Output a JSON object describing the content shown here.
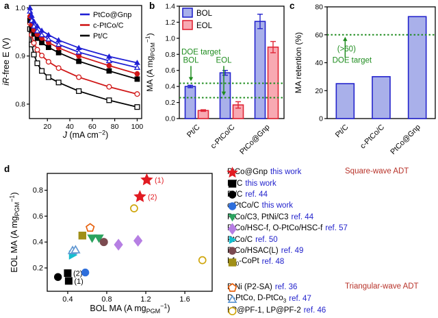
{
  "panels": {
    "a": {
      "label": "a"
    },
    "b": {
      "label": "b"
    },
    "c": {
      "label": "c"
    },
    "d": {
      "label": "d"
    }
  },
  "colors": {
    "line_blue": "#1f1fd4",
    "line_red": "#d01818",
    "line_black": "#000000",
    "bar_blue_fill": "#a9b0ea",
    "bar_blue_edge": "#2323cc",
    "bar_red_fill": "#f8a9b2",
    "bar_red_edge": "#e02636",
    "doe_green": "#1e8c1e",
    "adt_dark_red": "#b73229",
    "ref_blue": "#2222cc"
  },
  "chart_data": [
    {
      "id": "a",
      "type": "line",
      "xlabel": "*J* (mA cm^−2^)",
      "ylabel": "*iR*-free E (V)",
      "xlim": [
        4,
        104
      ],
      "ylim": [
        0.77,
        1.005
      ],
      "xticks": [
        20,
        40,
        60,
        80,
        100
      ],
      "yticks": [
        0.8,
        0.9,
        1.0
      ],
      "x": [
        4.5,
        6,
        8,
        11,
        15,
        21,
        30,
        48,
        75,
        100
      ],
      "series": [
        {
          "name": "Pt/C EOL",
          "color": "#000000",
          "marker": "square",
          "open": true,
          "values": [
            0.956,
            0.924,
            0.903,
            0.885,
            0.869,
            0.856,
            0.845,
            0.827,
            0.808,
            0.794
          ]
        },
        {
          "name": "c-PtCo/C EOL",
          "color": "#d01818",
          "marker": "circle",
          "open": true,
          "values": [
            0.968,
            0.944,
            0.927,
            0.913,
            0.901,
            0.888,
            0.875,
            0.856,
            0.836,
            0.821
          ]
        },
        {
          "name": "Pt/C BOL",
          "color": "#000000",
          "marker": "square",
          "open": false,
          "values": [
            0.974,
            0.957,
            0.946,
            0.937,
            0.928,
            0.918,
            0.907,
            0.889,
            0.869,
            0.852
          ]
        },
        {
          "name": "c-PtCo/C BOL",
          "color": "#d01818",
          "marker": "circle",
          "open": false,
          "values": [
            0.982,
            0.965,
            0.954,
            0.945,
            0.937,
            0.928,
            0.917,
            0.9,
            0.88,
            0.863
          ]
        },
        {
          "name": "PtCo@Gnp EOL",
          "color": "#1f1fd4",
          "marker": "triangle-up",
          "open": true,
          "values": [
            0.993,
            0.974,
            0.962,
            0.952,
            0.944,
            0.935,
            0.924,
            0.908,
            0.89,
            0.876
          ]
        },
        {
          "name": "PtCo@Gnp BOL",
          "color": "#1f1fd4",
          "marker": "triangle-up",
          "open": false,
          "values": [
            1.0,
            0.984,
            0.972,
            0.962,
            0.953,
            0.944,
            0.933,
            0.917,
            0.899,
            0.886
          ]
        }
      ],
      "legend": [
        {
          "label": "PtCo@Gnp",
          "color": "#1f1fd4"
        },
        {
          "label": "c-PtCo/C",
          "color": "#d01818"
        },
        {
          "label": "Pt/C",
          "color": "#000000"
        }
      ]
    },
    {
      "id": "b",
      "type": "bar",
      "ylabel": "MA (A mg~PGM~^−1^)",
      "categories": [
        "Pt/C",
        "c-PtCo/C",
        "PtCo@Gnp"
      ],
      "ylim": [
        0,
        1.4
      ],
      "yticks": [
        0,
        0.2,
        0.4,
        0.6,
        0.8,
        1.0,
        1.2,
        1.4
      ],
      "ytick_decimals": 1,
      "series": [
        {
          "name": "BOL",
          "fill": "#a9b0ea",
          "edge": "#2323cc",
          "values": [
            0.4,
            0.57,
            1.21
          ],
          "errors": [
            0.015,
            0.03,
            0.09
          ]
        },
        {
          "name": "EOL",
          "fill": "#f8a9b2",
          "edge": "#e02636",
          "values": [
            0.1,
            0.17,
            0.89
          ],
          "errors": [
            0.01,
            0.04,
            0.07
          ]
        }
      ],
      "targets": {
        "color": "#1e8c1e",
        "title": "DOE target",
        "lines": [
          {
            "label": "BOL",
            "value": 0.44
          },
          {
            "label": "EOL",
            "value": 0.26
          }
        ]
      }
    },
    {
      "id": "c",
      "type": "bar",
      "ylabel": "MA retention (%)",
      "categories": [
        "Pt/C",
        "c-PtCo/C",
        "PtCo@Gnp"
      ],
      "ylim": [
        0,
        80
      ],
      "yticks": [
        0,
        20,
        40,
        60,
        80
      ],
      "ytick_decimals": 0,
      "series": [
        {
          "name": "MA retention",
          "fill": "#a9b0ea",
          "edge": "#2323cc",
          "values": [
            25,
            30,
            73
          ]
        }
      ],
      "targets": {
        "color": "#1e8c1e",
        "note_line1": "(>60)",
        "note_line2": "DOE target",
        "lines": [
          {
            "value": 60
          }
        ]
      }
    },
    {
      "id": "d",
      "type": "scatter",
      "xlabel": "BOL MA (A mg~PGM~^−1^)",
      "ylabel": "EOL MA (A mg~PGM~^−1^)",
      "xlim": [
        0.19,
        1.88
      ],
      "ylim": [
        0.02,
        0.93
      ],
      "xticks": [
        0.4,
        0.8,
        1.2,
        1.6
      ],
      "yticks": [
        0.2,
        0.4,
        0.6,
        0.8
      ],
      "series": [
        {
          "name": "PtCo@Gnp this work",
          "marker": "star",
          "color": "#e11b22",
          "open": false,
          "size": 8.5,
          "points": [
            {
              "x": 1.21,
              "y": 0.88,
              "label": "(1)"
            },
            {
              "x": 1.14,
              "y": 0.75,
              "label": "(2)"
            }
          ]
        },
        {
          "name": "Pt/C this work",
          "marker": "square",
          "color": "#000000",
          "open": false,
          "size": 5,
          "points": [
            {
              "x": 0.4,
              "y": 0.16,
              "label": "(2)"
            },
            {
              "x": 0.41,
              "y": 0.1,
              "label": "(1)"
            }
          ]
        },
        {
          "name": "Pt/C ref. 44",
          "marker": "circle",
          "color": "#000000",
          "open": false,
          "size": 5.2,
          "points": [
            {
              "x": 0.3,
              "y": 0.13
            }
          ]
        },
        {
          "name": "c-PtCo/C this work",
          "marker": "circle",
          "color": "#2e6edb",
          "open": false,
          "size": 5.2,
          "points": [
            {
              "x": 0.58,
              "y": 0.165
            }
          ]
        },
        {
          "name": "PtCo/C3, PtNi/C3 ref. 44",
          "marker": "triangle-down",
          "color": "#2ba35f",
          "open": false,
          "size": 6,
          "points": [
            {
              "x": 0.65,
              "y": 0.43
            },
            {
              "x": 0.72,
              "y": 0.43
            }
          ]
        },
        {
          "name": "PtCo/HSC-f, O-PtCo/HSC-f ref. 57",
          "marker": "diamond",
          "color": "#b67fe3",
          "open": false,
          "size": 6,
          "points": [
            {
              "x": 0.92,
              "y": 0.38
            },
            {
              "x": 1.12,
              "y": 0.41
            }
          ]
        },
        {
          "name": "PtCo/C ref. 50",
          "marker": "triangle-right",
          "color": "#16becf",
          "open": false,
          "size": 6,
          "points": [
            {
              "x": 0.45,
              "y": 0.3
            }
          ]
        },
        {
          "name": "PtCo/HSAC(L) ref. 49",
          "marker": "circle",
          "color": "#7b4a50",
          "open": false,
          "size": 5.5,
          "points": [
            {
              "x": 0.77,
              "y": 0.4
            }
          ]
        },
        {
          "name": "L10-CoPt ref. 48",
          "marker": "square",
          "color": "#a08f17",
          "open": false,
          "size": 5.2,
          "points": [
            {
              "x": 0.55,
              "y": 0.45
            }
          ]
        },
        {
          "name": "PtNi (P2-SA) ref. 36",
          "marker": "pentagon",
          "color": "#e7600d",
          "open": true,
          "size": 6,
          "points": [
            {
              "x": 0.63,
              "y": 0.51
            }
          ]
        },
        {
          "name": "D-PtCo, D-PtCo3 ref. 47",
          "marker": "triangle-up",
          "color": "#6197d2",
          "open": true,
          "size": 5.5,
          "points": [
            {
              "x": 0.45,
              "y": 0.335
            },
            {
              "x": 0.48,
              "y": 0.34
            }
          ]
        },
        {
          "name": "LP@PF-1, LP@PF-2 ref. 46",
          "marker": "circle",
          "color": "#cfa50a",
          "open": true,
          "size": 5,
          "points": [
            {
              "x": 1.08,
              "y": 0.66
            },
            {
              "x": 1.78,
              "y": 0.26
            }
          ]
        }
      ]
    }
  ],
  "legend_d": {
    "groups": [
      {
        "label": "Square-wave ADT",
        "items": [
          {
            "marker": "star",
            "color": "#e11b22",
            "open": false,
            "name": "PtCo@Gnp",
            "ref": "this work"
          },
          {
            "marker": "square",
            "color": "#000000",
            "open": false,
            "name": "Pt/C",
            "ref": "this work"
          },
          {
            "marker": "circle",
            "color": "#000000",
            "open": false,
            "name": "Pt/C",
            "ref": "ref. 44"
          },
          {
            "marker": "circle",
            "color": "#2e6edb",
            "open": false,
            "name": "c-PtCo/C",
            "ref": "this work"
          },
          {
            "marker": "triangle-down",
            "color": "#2ba35f",
            "open": false,
            "name": "PtCo/C3, PtNi/C3",
            "ref": "ref. 44"
          },
          {
            "marker": "diamond",
            "color": "#b67fe3",
            "open": false,
            "name": "PtCo/HSC-f, O-PtCo/HSC-f",
            "ref": "ref. 57"
          },
          {
            "marker": "triangle-right",
            "color": "#16becf",
            "open": false,
            "name": "PtCo/C",
            "ref": "ref. 50"
          },
          {
            "marker": "circle",
            "color": "#7b4a50",
            "open": false,
            "name": "PtCo/HSAC(L)",
            "ref": "ref. 49"
          },
          {
            "marker": "square",
            "color": "#a08f17",
            "open": false,
            "name": "L1~0~-CoPt",
            "ref": "ref. 48"
          }
        ]
      },
      {
        "label": "Triangular-wave ADT",
        "items": [
          {
            "marker": "pentagon",
            "color": "#e7600d",
            "open": true,
            "name": "PtNi (P2-SA)",
            "ref": "ref. 36"
          },
          {
            "marker": "triangle-up",
            "color": "#6197d2",
            "open": true,
            "name": "D-PtCo, D-PtCo~3~",
            "ref": "ref. 47"
          },
          {
            "marker": "circle",
            "color": "#cfa50a",
            "open": true,
            "name": "LP@PF-1, LP@PF-2",
            "ref": "ref. 46"
          }
        ]
      }
    ]
  }
}
